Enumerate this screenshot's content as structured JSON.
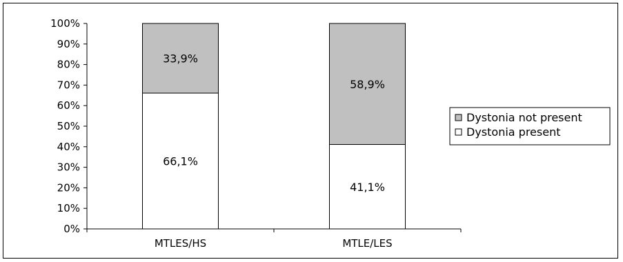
{
  "chart_data": {
    "type": "bar",
    "stacked": true,
    "orientation": "vertical",
    "percent_stacked": true,
    "categories": [
      "MTLES/HS",
      "MTLE/LES"
    ],
    "series": [
      {
        "name": "Dystonia present",
        "values": [
          66.1,
          41.1
        ],
        "color": "#ffffff",
        "labels": [
          "66,1%",
          "41,1%"
        ]
      },
      {
        "name": "Dystonia not present",
        "values": [
          33.9,
          58.9
        ],
        "color": "#c0c0c0",
        "labels": [
          "33,9%",
          "58,9%"
        ]
      }
    ],
    "yticks": [
      "0%",
      "10%",
      "20%",
      "30%",
      "40%",
      "50%",
      "60%",
      "70%",
      "80%",
      "90%",
      "100%"
    ],
    "ylim": [
      0,
      100
    ],
    "grid": false,
    "legend": {
      "position": "right",
      "entries": [
        "Dystonia not present",
        "Dystonia present"
      ]
    },
    "title": "",
    "xlabel": "",
    "ylabel": ""
  }
}
